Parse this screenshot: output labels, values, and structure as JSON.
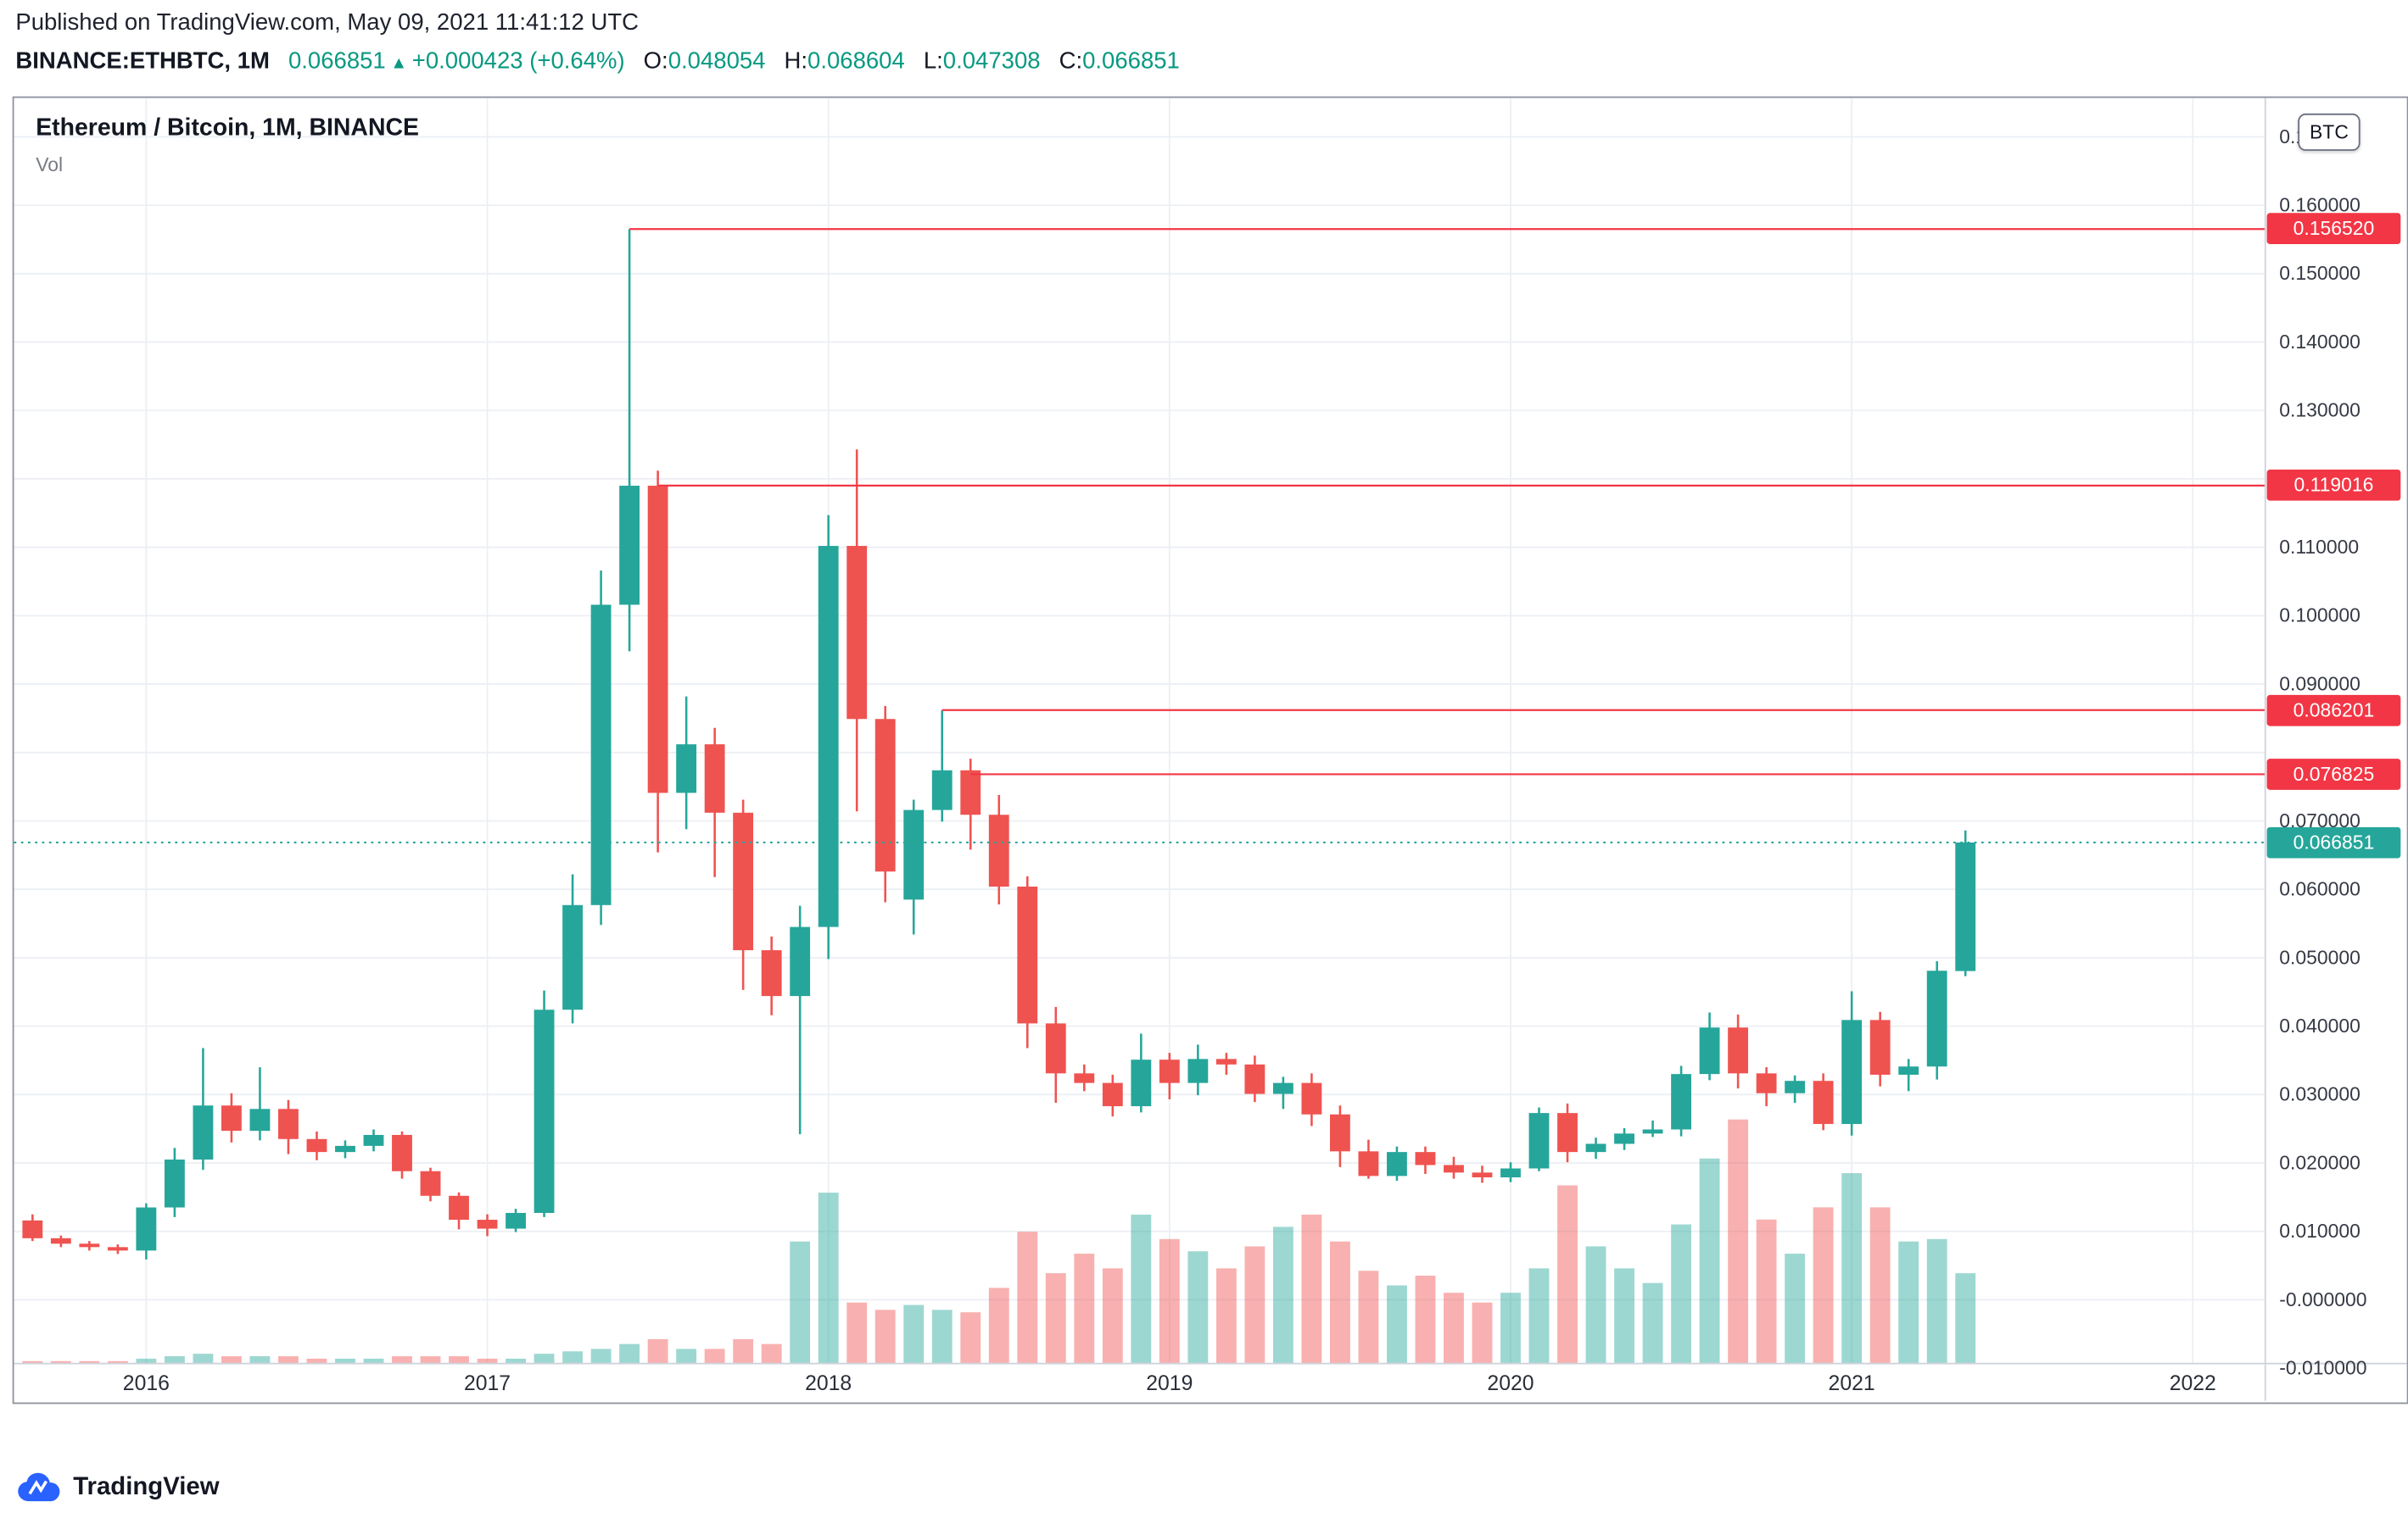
{
  "publish_line": "Published on TradingView.com, May 09, 2021 11:41:12 UTC",
  "header": {
    "symbol": "BINANCE:ETHBTC, 1M",
    "last": "0.066851",
    "arrow": "▲",
    "change": "+0.000423 (+0.64%)",
    "ohlc": [
      {
        "label": "O:",
        "value": "0.048054"
      },
      {
        "label": "H:",
        "value": "0.068604"
      },
      {
        "label": "L:",
        "value": "0.047308"
      },
      {
        "label": "C:",
        "value": "0.066851"
      }
    ]
  },
  "price_axis": {
    "currency_button": "BTC"
  },
  "footer": {
    "logo_text": "TradingView"
  },
  "colors": {
    "up": "#26a69a",
    "down": "#ef5350",
    "volume_up": "rgba(38,166,154,0.45)",
    "volume_down": "rgba(239,83,80,0.45)",
    "level_line": "#f23645",
    "last_price": "#26a69a",
    "last_price_badge": "#26a69a",
    "header_value": "#089981",
    "text_dark": "#131722",
    "axis_text": "#363a45",
    "grid": "#eceff4",
    "separator": "#cfd3dc",
    "logo_blue": "#2962ff"
  },
  "chart_data": {
    "type": "candlestick",
    "title": "Ethereum / Bitcoin, 1M, BINANCE",
    "indicator": "Vol",
    "symbol": "ETHBTC",
    "exchange": "BINANCE",
    "timeframe": "1M",
    "ylim": [
      -0.0093,
      0.1757
    ],
    "grid": true,
    "columns": [
      "month",
      "open",
      "high",
      "low",
      "close",
      "volume_rel_0_100"
    ],
    "candles": [
      [
        "2015-09",
        0.0116,
        0.0125,
        0.0086,
        0.009,
        1
      ],
      [
        "2015-10",
        0.009,
        0.0094,
        0.0077,
        0.0082,
        1
      ],
      [
        "2015-11",
        0.0082,
        0.0086,
        0.0072,
        0.0077,
        1
      ],
      [
        "2015-12",
        0.0077,
        0.0081,
        0.0067,
        0.0072,
        1
      ],
      [
        "2016-01",
        0.0072,
        0.0141,
        0.0059,
        0.0135,
        2
      ],
      [
        "2016-02",
        0.0135,
        0.0222,
        0.0121,
        0.0205,
        3
      ],
      [
        "2016-03",
        0.0205,
        0.0368,
        0.019,
        0.0284,
        4
      ],
      [
        "2016-04",
        0.0284,
        0.0302,
        0.023,
        0.0247,
        3
      ],
      [
        "2016-05",
        0.0247,
        0.034,
        0.0233,
        0.0279,
        3
      ],
      [
        "2016-06",
        0.0279,
        0.0292,
        0.0213,
        0.0235,
        3
      ],
      [
        "2016-07",
        0.0235,
        0.0246,
        0.0204,
        0.0216,
        2
      ],
      [
        "2016-08",
        0.0216,
        0.0233,
        0.0207,
        0.0225,
        2
      ],
      [
        "2016-09",
        0.0225,
        0.0249,
        0.0217,
        0.0241,
        2
      ],
      [
        "2016-10",
        0.0241,
        0.0246,
        0.0177,
        0.0188,
        3
      ],
      [
        "2016-11",
        0.0188,
        0.0193,
        0.0144,
        0.0152,
        3
      ],
      [
        "2016-12",
        0.0152,
        0.0157,
        0.0103,
        0.0117,
        3
      ],
      [
        "2017-01",
        0.0117,
        0.0125,
        0.0093,
        0.0104,
        2
      ],
      [
        "2017-02",
        0.0104,
        0.0133,
        0.0099,
        0.0127,
        2
      ],
      [
        "2017-03",
        0.0127,
        0.0452,
        0.0121,
        0.0424,
        4
      ],
      [
        "2017-04",
        0.0424,
        0.0622,
        0.0404,
        0.0577,
        5
      ],
      [
        "2017-05",
        0.0577,
        0.1066,
        0.0548,
        0.1016,
        6
      ],
      [
        "2017-06",
        0.1016,
        0.1565,
        0.0948,
        0.119,
        8
      ],
      [
        "2017-07",
        0.119,
        0.1212,
        0.0654,
        0.0741,
        10
      ],
      [
        "2017-08",
        0.0741,
        0.0882,
        0.0688,
        0.0812,
        6
      ],
      [
        "2017-09",
        0.0812,
        0.0836,
        0.0618,
        0.0712,
        6
      ],
      [
        "2017-10",
        0.0712,
        0.0731,
        0.0453,
        0.0511,
        10
      ],
      [
        "2017-11",
        0.0511,
        0.0531,
        0.0416,
        0.0444,
        8
      ],
      [
        "2017-12",
        0.0444,
        0.0576,
        0.0242,
        0.0545,
        50
      ],
      [
        "2018-01",
        0.0545,
        0.1147,
        0.0498,
        0.1102,
        70
      ],
      [
        "2018-02",
        0.1102,
        0.1243,
        0.0714,
        0.0849,
        25
      ],
      [
        "2018-03",
        0.0849,
        0.0868,
        0.0581,
        0.0626,
        22
      ],
      [
        "2018-04",
        0.0585,
        0.0731,
        0.0534,
        0.0716,
        24
      ],
      [
        "2018-05",
        0.0716,
        0.0862,
        0.0699,
        0.0774,
        22
      ],
      [
        "2018-06",
        0.0774,
        0.0791,
        0.0658,
        0.0709,
        21
      ],
      [
        "2018-07",
        0.0709,
        0.0738,
        0.0578,
        0.0604,
        31
      ],
      [
        "2018-08",
        0.0604,
        0.0619,
        0.0368,
        0.0404,
        54
      ],
      [
        "2018-09",
        0.0404,
        0.0428,
        0.0288,
        0.0331,
        37
      ],
      [
        "2018-10",
        0.0331,
        0.0344,
        0.0305,
        0.0317,
        45
      ],
      [
        "2018-11",
        0.0317,
        0.0329,
        0.0268,
        0.0283,
        39
      ],
      [
        "2018-12",
        0.0283,
        0.0389,
        0.0274,
        0.0351,
        61
      ],
      [
        "2019-01",
        0.0351,
        0.0361,
        0.0293,
        0.0317,
        51
      ],
      [
        "2019-02",
        0.0317,
        0.0373,
        0.0299,
        0.0352,
        46
      ],
      [
        "2019-03",
        0.0352,
        0.0361,
        0.0329,
        0.0344,
        39
      ],
      [
        "2019-04",
        0.0344,
        0.0357,
        0.0289,
        0.0301,
        48
      ],
      [
        "2019-05",
        0.0301,
        0.0326,
        0.0279,
        0.0317,
        56
      ],
      [
        "2019-06",
        0.0317,
        0.0331,
        0.0254,
        0.0271,
        61
      ],
      [
        "2019-07",
        0.0271,
        0.0284,
        0.0194,
        0.0217,
        50
      ],
      [
        "2019-08",
        0.0217,
        0.0234,
        0.0177,
        0.0181,
        38
      ],
      [
        "2019-09",
        0.0181,
        0.0224,
        0.0174,
        0.0216,
        32
      ],
      [
        "2019-10",
        0.0216,
        0.0224,
        0.0184,
        0.0197,
        36
      ],
      [
        "2019-11",
        0.0197,
        0.0209,
        0.0177,
        0.0186,
        29
      ],
      [
        "2019-12",
        0.0186,
        0.0196,
        0.0171,
        0.0179,
        25
      ],
      [
        "2020-01",
        0.0179,
        0.0201,
        0.0172,
        0.0192,
        29
      ],
      [
        "2020-02",
        0.0192,
        0.0281,
        0.0188,
        0.0273,
        39
      ],
      [
        "2020-03",
        0.0273,
        0.0287,
        0.0201,
        0.0216,
        73
      ],
      [
        "2020-04",
        0.0216,
        0.0237,
        0.0206,
        0.0228,
        48
      ],
      [
        "2020-05",
        0.0228,
        0.0251,
        0.0219,
        0.0243,
        39
      ],
      [
        "2020-06",
        0.0243,
        0.0262,
        0.0238,
        0.0249,
        33
      ],
      [
        "2020-07",
        0.0249,
        0.0342,
        0.0239,
        0.033,
        57
      ],
      [
        "2020-08",
        0.033,
        0.042,
        0.0321,
        0.0398,
        84
      ],
      [
        "2020-09",
        0.0398,
        0.0417,
        0.0309,
        0.0331,
        100
      ],
      [
        "2020-10",
        0.0331,
        0.034,
        0.0283,
        0.0302,
        59
      ],
      [
        "2020-11",
        0.0302,
        0.0328,
        0.0288,
        0.032,
        45
      ],
      [
        "2020-12",
        0.032,
        0.0331,
        0.0248,
        0.0257,
        64
      ],
      [
        "2021-01",
        0.0257,
        0.0451,
        0.024,
        0.0409,
        78
      ],
      [
        "2021-02",
        0.0409,
        0.0421,
        0.0312,
        0.0329,
        64
      ],
      [
        "2021-03",
        0.0329,
        0.0352,
        0.0305,
        0.0341,
        50
      ],
      [
        "2021-04",
        0.0341,
        0.0495,
        0.0322,
        0.0481,
        51
      ],
      [
        "2021-05",
        0.048054,
        0.068604,
        0.047308,
        0.066851,
        37
      ]
    ],
    "price_lines": [
      {
        "price": 0.15652,
        "label": "0.156520",
        "from": "2017-06",
        "style": "solid",
        "role": "level"
      },
      {
        "price": 0.119016,
        "label": "0.119016",
        "from": "2017-07",
        "style": "solid",
        "role": "level"
      },
      {
        "price": 0.086201,
        "label": "0.086201",
        "from": "2018-05",
        "style": "solid",
        "role": "level"
      },
      {
        "price": 0.076825,
        "label": "0.076825",
        "from": "2018-06",
        "style": "solid",
        "role": "level"
      },
      {
        "price": 0.066851,
        "label": "0.066851",
        "from": null,
        "style": "dotted",
        "role": "last-price"
      }
    ],
    "y_axis_ticks": [
      {
        "value": 0.17,
        "label": "0.170000"
      },
      {
        "value": 0.16,
        "label": "0.160000"
      },
      {
        "value": 0.15,
        "label": "0.150000"
      },
      {
        "value": 0.14,
        "label": "0.140000"
      },
      {
        "value": 0.13,
        "label": "0.130000"
      },
      {
        "value": 0.12,
        "label": null
      },
      {
        "value": 0.11,
        "label": "0.110000"
      },
      {
        "value": 0.1,
        "label": "0.100000"
      },
      {
        "value": 0.09,
        "label": "0.090000"
      },
      {
        "value": 0.08,
        "label": null
      },
      {
        "value": 0.07,
        "label": "0.070000"
      },
      {
        "value": 0.06,
        "label": "0.060000"
      },
      {
        "value": 0.05,
        "label": "0.050000"
      },
      {
        "value": 0.04,
        "label": "0.040000"
      },
      {
        "value": 0.03,
        "label": "0.030000"
      },
      {
        "value": 0.02,
        "label": "0.020000"
      },
      {
        "value": 0.01,
        "label": "0.010000"
      },
      {
        "value": 0.0,
        "label": "-0.000000"
      },
      {
        "value": -0.01,
        "label": "-0.010000"
      }
    ],
    "x_axis_years": [
      2016,
      2017,
      2018,
      2019,
      2020,
      2021,
      2022
    ]
  }
}
